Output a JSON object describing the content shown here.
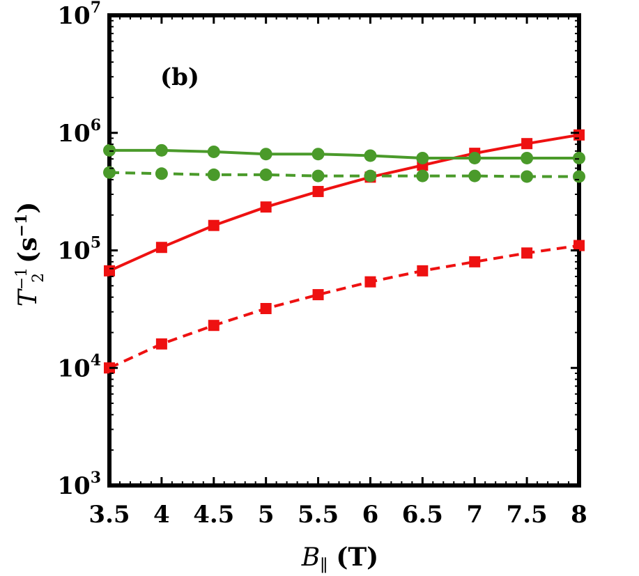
{
  "chart_data": {
    "type": "line",
    "panel_label": "(b)",
    "xlabel": {
      "symbol": "B",
      "subscript": "∥",
      "unit": "(T)"
    },
    "ylabel": {
      "symbol": "T",
      "subscript": "2",
      "superscript": "−1",
      "unit": "(s",
      "unit_sup": "−1",
      "unit_close": ")"
    },
    "xlim": [
      3.5,
      8
    ],
    "ylim": [
      1000,
      10000000
    ],
    "yscale": "log",
    "x_ticks": [
      "3.5",
      "4",
      "4.5",
      "5",
      "5.5",
      "6",
      "6.5",
      "7",
      "7.5",
      "8"
    ],
    "x_tick_values": [
      3.5,
      4,
      4.5,
      5,
      5.5,
      6,
      6.5,
      7,
      7.5,
      8
    ],
    "y_ticks": [
      {
        "value": 1000,
        "base": "10",
        "exp": "3"
      },
      {
        "value": 10000,
        "base": "10",
        "exp": "4"
      },
      {
        "value": 100000,
        "base": "10",
        "exp": "5"
      },
      {
        "value": 1000000,
        "base": "10",
        "exp": "6"
      },
      {
        "value": 10000000,
        "base": "10",
        "exp": "7"
      }
    ],
    "x": [
      3.5,
      4,
      4.5,
      5,
      5.5,
      6,
      6.5,
      7,
      7.5,
      8
    ],
    "series": [
      {
        "color": "#ee1111",
        "marker": "square",
        "dash": "solid",
        "values": [
          67000,
          106000,
          163000,
          234000,
          317000,
          420000,
          530000,
          670000,
          810000,
          960000
        ]
      },
      {
        "color": "#ee1111",
        "marker": "square",
        "dash": "dashed",
        "values": [
          10000,
          16000,
          23000,
          32000,
          42000,
          54000,
          67000,
          80000,
          95000,
          110000
        ]
      },
      {
        "color": "#4a9a2a",
        "marker": "circle",
        "dash": "solid",
        "values": [
          710000,
          710000,
          690000,
          660000,
          660000,
          640000,
          610000,
          610000,
          610000,
          610000
        ]
      },
      {
        "color": "#4a9a2a",
        "marker": "circle",
        "dash": "dashed",
        "values": [
          460000,
          450000,
          440000,
          440000,
          430000,
          430000,
          430000,
          430000,
          425000,
          425000
        ]
      }
    ],
    "grid": false,
    "legend": "none"
  }
}
